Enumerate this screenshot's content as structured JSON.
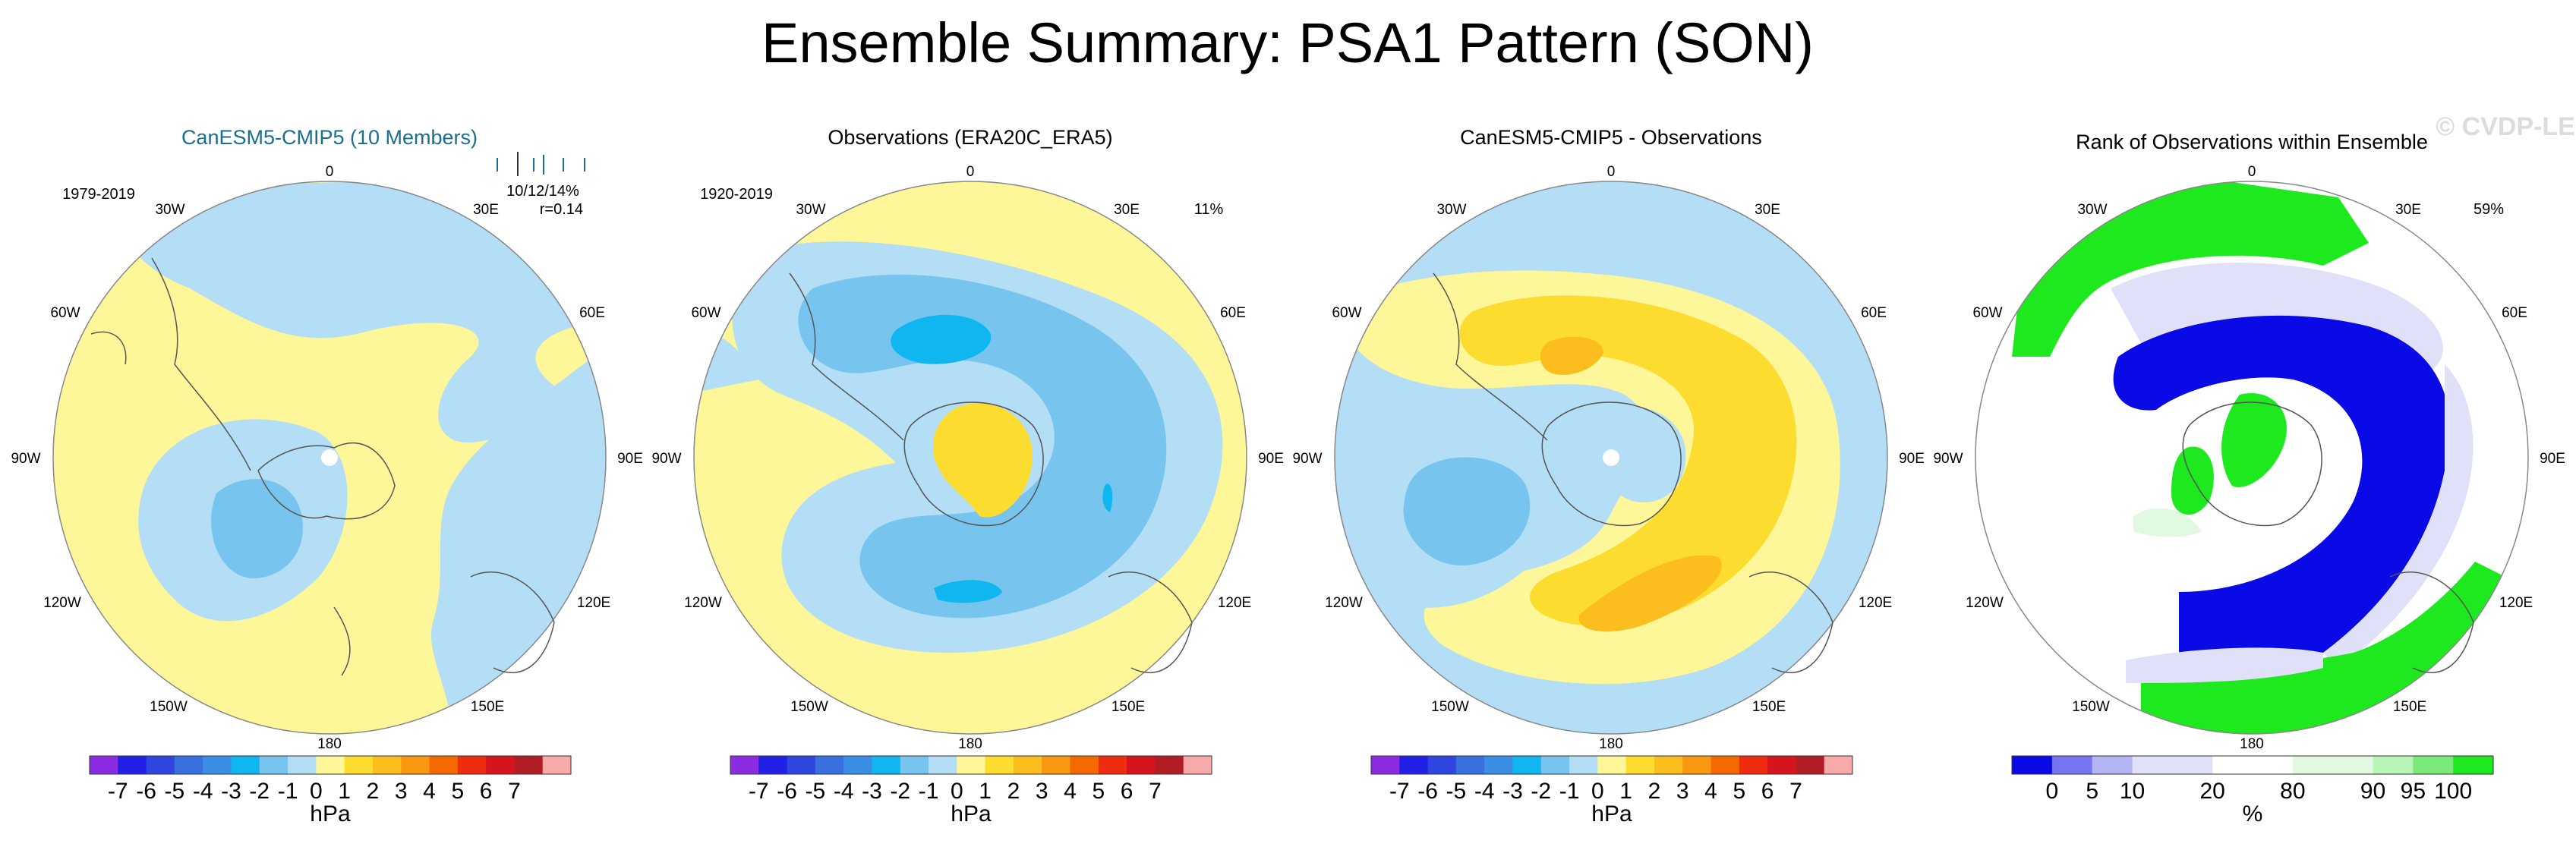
{
  "title": "Ensemble Summary: PSA1 Pattern (SON)",
  "watermark": "© CVDP-LE",
  "panels": [
    {
      "title": "CanESM5-CMIP5 (10 Members)",
      "title_color": "#1a6e8e",
      "period": "1979-2019",
      "pct": "",
      "rank_text": "10/12/14%",
      "r_text": "r=0.14"
    },
    {
      "title": "Observations (ERA20C_ERA5)",
      "title_color": "#000000",
      "period": "1920-2019",
      "pct": "11%"
    },
    {
      "title": "CanESM5-CMIP5 - Observations",
      "title_color": "#000000",
      "period": "",
      "pct": ""
    },
    {
      "title": "Rank of Observations within Ensemble",
      "title_color": "#000000",
      "period": "",
      "pct": "59%"
    }
  ],
  "lon_labels": [
    "0",
    "30E",
    "60E",
    "90E",
    "120E",
    "150E",
    "180",
    "150W",
    "120W",
    "90W",
    "60W",
    "30W"
  ],
  "hpa_colorbar": {
    "colors": [
      "#8b2be2",
      "#2020e6",
      "#2f45e0",
      "#3a6fe0",
      "#3b8ee6",
      "#10b6f0",
      "#77c5ee",
      "#b3def5",
      "#fdf79a",
      "#fddc30",
      "#fbbe1e",
      "#f99810",
      "#f56a00",
      "#ef2b10",
      "#d6141e",
      "#b01d24",
      "#f8a9a9"
    ],
    "labels": [
      "-7",
      "-6",
      "-5",
      "-4",
      "-3",
      "-2",
      "-1",
      "0",
      "1",
      "2",
      "3",
      "4",
      "5",
      "6",
      "7"
    ],
    "unit": "hPa"
  },
  "rank_colorbar": {
    "colors": [
      "#0a0ae6",
      "#7575f0",
      "#b4b4f5",
      "#e0e0f8",
      "#e0e0f8",
      "#ffffff",
      "#ffffff",
      "#e0f9e0",
      "#e0f9e0",
      "#b6f5b6",
      "#7ae97a",
      "#1ee81e"
    ],
    "labels": [
      "0",
      "5",
      "10",
      "20",
      "80",
      "90",
      "95",
      "100"
    ],
    "unit": "%"
  },
  "map_colors": {
    "disk_bg": "#fdf79a",
    "light_blue": "#b3def5",
    "mid_blue": "#77c5ee",
    "cyan_blue": "#10b6f0",
    "yellow": "#fdf79a",
    "gold": "#fddc30",
    "orange": "#fbbe1e",
    "rank_blue": "#0a0ae6",
    "rank_green": "#1ee81e",
    "rank_lavender": "#e0e0f8",
    "rank_mint": "#e0f9e0"
  }
}
